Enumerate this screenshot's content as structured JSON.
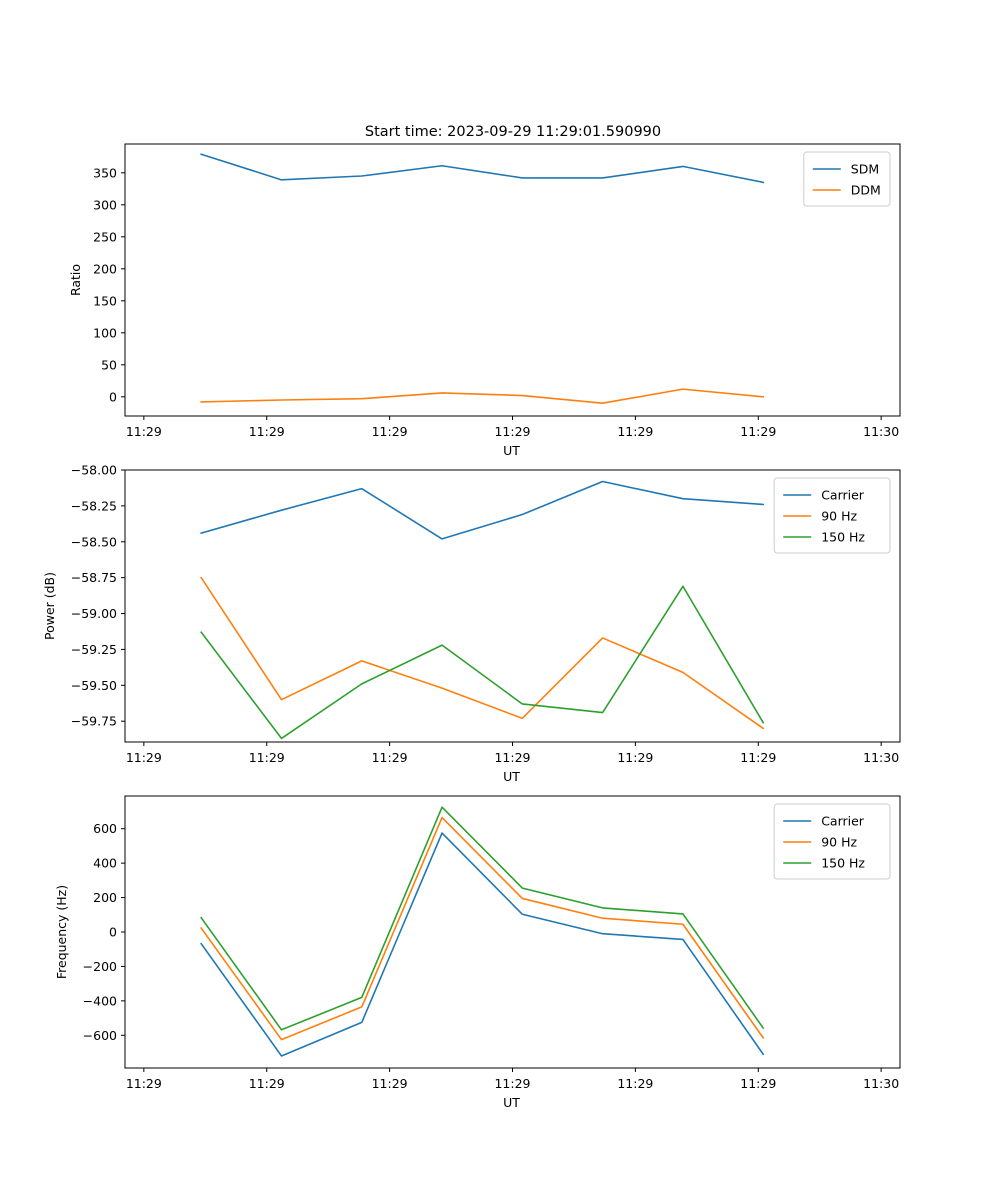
{
  "figure": {
    "title": "Start time: 2023-09-29 11:29:01.590990"
  },
  "chart_data": [
    {
      "type": "line",
      "title": "Start time: 2023-09-29 11:29:01.590990",
      "xlabel": "UT",
      "ylabel": "Ratio",
      "xlim": [
        -0.23,
        9.23
      ],
      "x_ticks": [
        0,
        1.5,
        3,
        4.5,
        6,
        7.5,
        9
      ],
      "x_tick_labels": [
        "11:29",
        "11:29",
        "11:29",
        "11:29",
        "11:29",
        "11:29",
        "11:30"
      ],
      "ylim": [
        -30,
        395
      ],
      "y_ticks": [
        0,
        50,
        100,
        150,
        200,
        250,
        300,
        350
      ],
      "y_tick_labels": [
        "0",
        "50",
        "100",
        "150",
        "200",
        "250",
        "300",
        "350"
      ],
      "legend_position": "top-right",
      "x": [
        0.7,
        1.68,
        2.66,
        3.64,
        4.62,
        5.6,
        6.58,
        7.56
      ],
      "series": [
        {
          "name": "SDM",
          "color": "#1f77b4",
          "values": [
            379,
            339,
            345,
            361,
            342,
            342,
            360,
            335
          ]
        },
        {
          "name": "DDM",
          "color": "#ff7f0e",
          "values": [
            -8,
            -5,
            -3,
            6,
            2,
            -10,
            12,
            0
          ]
        }
      ]
    },
    {
      "type": "line",
      "title": "",
      "xlabel": "UT",
      "ylabel": "Power (dB)",
      "xlim": [
        -0.23,
        9.23
      ],
      "x_ticks": [
        0,
        1.5,
        3,
        4.5,
        6,
        7.5,
        9
      ],
      "x_tick_labels": [
        "11:29",
        "11:29",
        "11:29",
        "11:29",
        "11:29",
        "11:29",
        "11:30"
      ],
      "ylim": [
        -59.895,
        -58.0
      ],
      "y_ticks": [
        -58.0,
        -58.25,
        -58.5,
        -58.75,
        -59.0,
        -59.25,
        -59.5,
        -59.75
      ],
      "y_tick_labels": [
        "−58.00",
        "−58.25",
        "−58.50",
        "−58.75",
        "−59.00",
        "−59.25",
        "−59.50",
        "−59.75"
      ],
      "legend_position": "top-right",
      "x": [
        0.7,
        1.68,
        2.66,
        3.64,
        4.62,
        5.6,
        6.58,
        7.56
      ],
      "series": [
        {
          "name": "Carrier",
          "color": "#1f77b4",
          "values": [
            -58.44,
            -58.28,
            -58.13,
            -58.48,
            -58.31,
            -58.08,
            -58.2,
            -58.24
          ]
        },
        {
          "name": "90 Hz",
          "color": "#ff7f0e",
          "values": [
            -58.75,
            -59.6,
            -59.33,
            -59.52,
            -59.73,
            -59.17,
            -59.41,
            -59.8
          ]
        },
        {
          "name": "150 Hz",
          "color": "#2ca02c",
          "values": [
            -59.13,
            -59.87,
            -59.49,
            -59.22,
            -59.63,
            -59.69,
            -58.81,
            -59.76
          ]
        }
      ]
    },
    {
      "type": "line",
      "title": "",
      "xlabel": "UT",
      "ylabel": "Frequency (Hz)",
      "xlim": [
        -0.23,
        9.23
      ],
      "x_ticks": [
        0,
        1.5,
        3,
        4.5,
        6,
        7.5,
        9
      ],
      "x_tick_labels": [
        "11:29",
        "11:29",
        "11:29",
        "11:29",
        "11:29",
        "11:29",
        "11:30"
      ],
      "ylim": [
        -790,
        790
      ],
      "y_ticks": [
        600,
        400,
        200,
        0,
        -200,
        -400,
        -600
      ],
      "y_tick_labels": [
        "600",
        "400",
        "200",
        "0",
        "−200",
        "−400",
        "−600"
      ],
      "legend_position": "top-right",
      "x": [
        0.7,
        1.68,
        2.66,
        3.64,
        4.62,
        5.6,
        6.58,
        7.56
      ],
      "series": [
        {
          "name": "Carrier",
          "color": "#1f77b4",
          "values": [
            -68,
            -720,
            -525,
            575,
            103,
            -10,
            -43,
            -710
          ]
        },
        {
          "name": "90 Hz",
          "color": "#ff7f0e",
          "values": [
            23,
            -625,
            -435,
            665,
            195,
            80,
            45,
            -615
          ]
        },
        {
          "name": "150 Hz",
          "color": "#2ca02c",
          "values": [
            83,
            -568,
            -380,
            725,
            255,
            140,
            105,
            -558
          ]
        }
      ]
    }
  ]
}
